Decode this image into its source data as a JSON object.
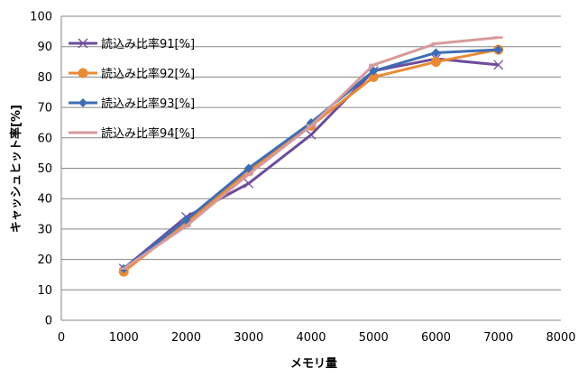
{
  "chart_data": {
    "type": "line",
    "xlabel": "メモリ量",
    "ylabel": "キャッシュヒット率[%]",
    "xlim": [
      0,
      8000
    ],
    "ylim": [
      0,
      100
    ],
    "xticks": [
      0,
      1000,
      2000,
      3000,
      4000,
      5000,
      6000,
      7000,
      8000
    ],
    "yticks": [
      0,
      10,
      20,
      30,
      40,
      50,
      60,
      70,
      80,
      90,
      100
    ],
    "grid": "horizontal",
    "legend_position": "top-left",
    "series": [
      {
        "name": "読込み比率91[%]",
        "color": "#6E4C9A",
        "marker": "x",
        "x": [
          1000,
          2000,
          3000,
          4000,
          5000,
          6000,
          7000
        ],
        "y": [
          17,
          34,
          45,
          61,
          82,
          86,
          84
        ]
      },
      {
        "name": "読込み比率92[%]",
        "color": "#E88B35",
        "marker": "circle",
        "x": [
          1000,
          2000,
          3000,
          4000,
          5000,
          6000,
          7000
        ],
        "y": [
          16,
          32,
          49,
          64,
          80,
          85,
          89
        ]
      },
      {
        "name": "読込み比率93[%]",
        "color": "#3E6DB5",
        "marker": "diamond",
        "x": [
          1000,
          2000,
          3000,
          4000,
          5000,
          6000,
          7000
        ],
        "y": [
          17,
          33,
          50,
          65,
          82,
          88,
          89
        ]
      },
      {
        "name": "読込み比率94[%]",
        "color": "#D79A9A",
        "marker": "dash",
        "x": [
          1000,
          2000,
          3000,
          4000,
          5000,
          6000,
          7000
        ],
        "y": [
          17,
          31,
          48,
          64,
          84,
          91,
          93
        ]
      }
    ]
  }
}
